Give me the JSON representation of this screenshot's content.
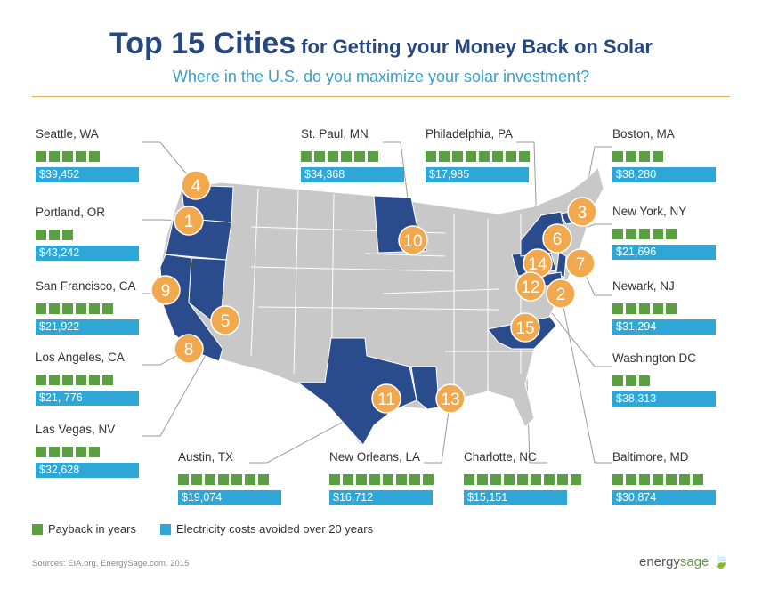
{
  "header": {
    "title_big": "Top 15 Cities",
    "title_small": "for Getting your Money Back on Solar",
    "subtitle": "Where in the U.S. do you maximize your solar investment?"
  },
  "colors": {
    "title": "#27477f",
    "subtitle": "#3a9fc5",
    "payback": "#5aa043",
    "cost": "#2fa7d6",
    "state_highlight": "#2a4c8c",
    "state_base": "#c8c8c8",
    "marker": "#f2a94e"
  },
  "chart_data": {
    "type": "table",
    "title": "Top 15 Cities for Getting your Money Back on Solar",
    "series": [
      {
        "name": "Payback in years"
      },
      {
        "name": "Electricity costs avoided over 20 years"
      }
    ],
    "cities": [
      {
        "rank": 4,
        "name": "Seattle, WA",
        "payback_years": 5,
        "cost_avoided": "$39,452"
      },
      {
        "rank": 1,
        "name": "Portland, OR",
        "payback_years": 3,
        "cost_avoided": "$43,242"
      },
      {
        "rank": 9,
        "name": "San Francisco, CA",
        "payback_years": 6,
        "cost_avoided": "$21,922"
      },
      {
        "rank": 8,
        "name": "Los Angeles, CA",
        "payback_years": 6,
        "cost_avoided": "$21, 776"
      },
      {
        "rank": 5,
        "name": "Las Vegas, NV",
        "payback_years": 5,
        "cost_avoided": "$32,628"
      },
      {
        "rank": 10,
        "name": "St. Paul, MN",
        "payback_years": 6,
        "cost_avoided": "$34,368"
      },
      {
        "rank": 14,
        "name": "Philadelphia, PA",
        "payback_years": 8,
        "cost_avoided": "$17,985"
      },
      {
        "rank": 3,
        "name": "Boston, MA",
        "payback_years": 4,
        "cost_avoided": "$38,280"
      },
      {
        "rank": 6,
        "name": "New York, NY",
        "payback_years": 5,
        "cost_avoided": "$21,696"
      },
      {
        "rank": 7,
        "name": "Newark, NJ",
        "payback_years": 5,
        "cost_avoided": "$31,294"
      },
      {
        "rank": 12,
        "name": "Washington DC",
        "payback_years": 3,
        "cost_avoided": "$38,313"
      },
      {
        "rank": 11,
        "name": "Austin, TX",
        "payback_years": 7,
        "cost_avoided": "$19,074"
      },
      {
        "rank": 13,
        "name": "New Orleans, LA",
        "payback_years": 8,
        "cost_avoided": "$16,712"
      },
      {
        "rank": 15,
        "name": "Charlotte, NC",
        "payback_years": 9,
        "cost_avoided": "$15,151"
      },
      {
        "rank": 2,
        "name": "Baltimore, MD",
        "payback_years": 7,
        "cost_avoided": "$30,874"
      }
    ]
  },
  "legend": {
    "payback_label": "Payback in years",
    "cost_label": "Electricity costs avoided over 20 years"
  },
  "footer": {
    "source": "Sources: EIA.org, EnergySage.com. 2015",
    "brand_a": "energy",
    "brand_b": "sage"
  }
}
